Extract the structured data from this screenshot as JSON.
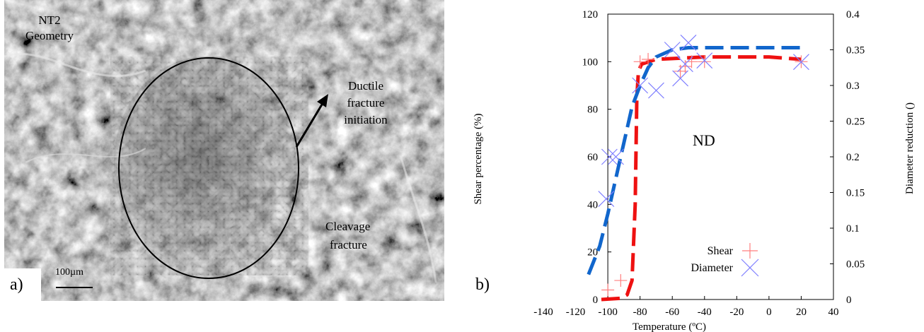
{
  "panel_a": {
    "label": "a)",
    "geometry_label_line1": "NT2",
    "geometry_label_line2": "Geometry",
    "ductile_label_line1": "Ductile",
    "ductile_label_line2": "fracture",
    "ductile_label_line3": "initiation",
    "cleavage_label_line1": "Cleavage",
    "cleavage_label_line2": "fracture",
    "scale_bar_label": "100µm"
  },
  "panel_b": {
    "label": "b)",
    "annotation": "ND"
  },
  "chart_data": {
    "type": "scatter",
    "xlabel": "Temperature (ºC)",
    "ylabel": "Shear percentage (%)",
    "y2label": "Diameter reduction ()",
    "xlim": [
      -140,
      40
    ],
    "ylim": [
      0,
      120
    ],
    "y2lim": [
      0,
      0.4
    ],
    "x_ticks": [
      "-140",
      "-120",
      "-100",
      "-80",
      "-60",
      "-40",
      "-20",
      "0",
      "20",
      "40"
    ],
    "y_ticks": [
      "0",
      "20",
      "40",
      "60",
      "80",
      "100",
      "120"
    ],
    "y2_ticks": [
      "0",
      "0.05",
      "0.1",
      "0.15",
      "0.2",
      "0.25",
      "0.3",
      "0.35",
      "0.4"
    ],
    "legend_position": "bottom-right",
    "grid": false,
    "series": [
      {
        "name": "Shear",
        "marker": "plus",
        "axis": "left",
        "color": "#ff7f7f",
        "points": [
          [
            -100,
            4
          ],
          [
            -92,
            8
          ],
          [
            -80,
            100
          ],
          [
            -75,
            101
          ],
          [
            -55,
            96
          ],
          [
            -52,
            98
          ],
          [
            -48,
            100
          ],
          [
            -40,
            100
          ],
          [
            20,
            100
          ]
        ]
      },
      {
        "name": "Diameter",
        "marker": "cross",
        "axis": "right",
        "color": "#7f7fff",
        "points": [
          [
            -101,
            0.141
          ],
          [
            -99,
            0.2
          ],
          [
            -95,
            0.2
          ],
          [
            -80,
            0.3
          ],
          [
            -70,
            0.293
          ],
          [
            -60,
            0.35
          ],
          [
            -55,
            0.31
          ],
          [
            -52,
            0.33
          ],
          [
            -50,
            0.36
          ],
          [
            -40,
            0.335
          ],
          [
            20,
            0.333
          ]
        ]
      }
    ],
    "fits": [
      {
        "axis": "left",
        "color": "#ee1111",
        "dash": true,
        "points": [
          [
            -104,
            0
          ],
          [
            -92,
            0.5
          ],
          [
            -88,
            2
          ],
          [
            -85,
            8
          ],
          [
            -83,
            40
          ],
          [
            -82,
            85
          ],
          [
            -81,
            96
          ],
          [
            -79,
            99
          ],
          [
            -70,
            101
          ],
          [
            -55,
            101.5
          ],
          [
            -40,
            102
          ],
          [
            0,
            102
          ],
          [
            20,
            101
          ]
        ]
      },
      {
        "axis": "right",
        "color": "#1166cc",
        "dash": true,
        "points": [
          [
            -112,
            0.035
          ],
          [
            -105,
            0.075
          ],
          [
            -100,
            0.12
          ],
          [
            -95,
            0.17
          ],
          [
            -90,
            0.22
          ],
          [
            -85,
            0.27
          ],
          [
            -80,
            0.3
          ],
          [
            -75,
            0.325
          ],
          [
            -70,
            0.34
          ],
          [
            -60,
            0.35
          ],
          [
            -50,
            0.353
          ],
          [
            -40,
            0.353
          ],
          [
            0,
            0.353
          ],
          [
            22,
            0.353
          ]
        ]
      }
    ]
  }
}
